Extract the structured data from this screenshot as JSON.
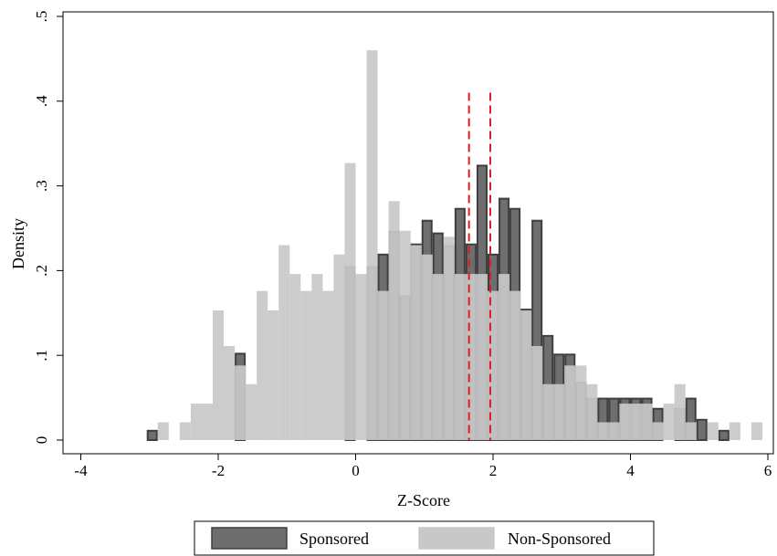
{
  "chart_data": {
    "type": "histogram",
    "xlabel": "Z-Score",
    "ylabel": "Density",
    "xlim": [
      -4.2,
      6.1
    ],
    "ylim": [
      0,
      0.5
    ],
    "x_ticks": [
      -4,
      -2,
      0,
      2,
      4,
      6
    ],
    "x_tick_labels": [
      "-4",
      "-2",
      "0",
      "2",
      "4",
      "6"
    ],
    "y_ticks": [
      0,
      0.1,
      0.2,
      0.3,
      0.4,
      0.5
    ],
    "y_tick_labels": [
      "0",
      ".1",
      ".2",
      ".3",
      ".4",
      ".5"
    ],
    "bin_width": 0.16,
    "legend_position": "bottom",
    "reference_lines": {
      "x": [
        1.65,
        1.96
      ],
      "style": "dashed",
      "color": "#e41a1c"
    },
    "series": [
      {
        "name": "Sponsored",
        "color": "#6e6e6e",
        "edge_color": "#3f3f3f",
        "bins": [
          {
            "x": -3.04,
            "y": 0.012
          },
          {
            "x": -1.76,
            "y": 0.103
          },
          {
            "x": -0.16,
            "y": 0.205
          },
          {
            "x": 0.16,
            "y": 0.205
          },
          {
            "x": 0.32,
            "y": 0.22
          },
          {
            "x": 0.48,
            "y": 0.247
          },
          {
            "x": 0.64,
            "y": 0.171
          },
          {
            "x": 0.8,
            "y": 0.232
          },
          {
            "x": 0.96,
            "y": 0.26
          },
          {
            "x": 1.12,
            "y": 0.245
          },
          {
            "x": 1.28,
            "y": 0.23
          },
          {
            "x": 1.44,
            "y": 0.274
          },
          {
            "x": 1.6,
            "y": 0.232
          },
          {
            "x": 1.76,
            "y": 0.325
          },
          {
            "x": 1.92,
            "y": 0.22
          },
          {
            "x": 2.08,
            "y": 0.286
          },
          {
            "x": 2.24,
            "y": 0.274
          },
          {
            "x": 2.4,
            "y": 0.155
          },
          {
            "x": 2.56,
            "y": 0.26
          },
          {
            "x": 2.72,
            "y": 0.124
          },
          {
            "x": 2.88,
            "y": 0.102
          },
          {
            "x": 3.04,
            "y": 0.102
          },
          {
            "x": 3.2,
            "y": 0.069
          },
          {
            "x": 3.36,
            "y": 0.05
          },
          {
            "x": 3.52,
            "y": 0.05
          },
          {
            "x": 3.68,
            "y": 0.05
          },
          {
            "x": 3.84,
            "y": 0.05
          },
          {
            "x": 4.0,
            "y": 0.05
          },
          {
            "x": 4.16,
            "y": 0.05
          },
          {
            "x": 4.32,
            "y": 0.038
          },
          {
            "x": 4.64,
            "y": 0.038
          },
          {
            "x": 4.8,
            "y": 0.05
          },
          {
            "x": 4.96,
            "y": 0.025
          },
          {
            "x": 5.28,
            "y": 0.012
          }
        ]
      },
      {
        "name": "Non-Sponsored",
        "color": "#c8c8c8",
        "edge_color": "#c8c8c8",
        "bins": [
          {
            "x": -2.88,
            "y": 0.021
          },
          {
            "x": -2.56,
            "y": 0.021
          },
          {
            "x": -2.4,
            "y": 0.043
          },
          {
            "x": -2.24,
            "y": 0.043
          },
          {
            "x": -2.08,
            "y": 0.153
          },
          {
            "x": -1.92,
            "y": 0.111
          },
          {
            "x": -1.76,
            "y": 0.088
          },
          {
            "x": -1.6,
            "y": 0.066
          },
          {
            "x": -1.44,
            "y": 0.176
          },
          {
            "x": -1.28,
            "y": 0.153
          },
          {
            "x": -1.12,
            "y": 0.23
          },
          {
            "x": -0.96,
            "y": 0.196
          },
          {
            "x": -0.8,
            "y": 0.176
          },
          {
            "x": -0.64,
            "y": 0.196
          },
          {
            "x": -0.48,
            "y": 0.176
          },
          {
            "x": -0.32,
            "y": 0.219
          },
          {
            "x": -0.16,
            "y": 0.327
          },
          {
            "x": 0.0,
            "y": 0.196
          },
          {
            "x": 0.16,
            "y": 0.46
          },
          {
            "x": 0.32,
            "y": 0.176
          },
          {
            "x": 0.48,
            "y": 0.282
          },
          {
            "x": 0.64,
            "y": 0.247
          },
          {
            "x": 0.8,
            "y": 0.23
          },
          {
            "x": 0.96,
            "y": 0.219
          },
          {
            "x": 1.12,
            "y": 0.196
          },
          {
            "x": 1.28,
            "y": 0.24
          },
          {
            "x": 1.44,
            "y": 0.196
          },
          {
            "x": 1.6,
            "y": 0.196
          },
          {
            "x": 1.76,
            "y": 0.196
          },
          {
            "x": 1.92,
            "y": 0.176
          },
          {
            "x": 2.08,
            "y": 0.196
          },
          {
            "x": 2.24,
            "y": 0.176
          },
          {
            "x": 2.4,
            "y": 0.153
          },
          {
            "x": 2.56,
            "y": 0.111
          },
          {
            "x": 2.72,
            "y": 0.066
          },
          {
            "x": 2.88,
            "y": 0.066
          },
          {
            "x": 3.04,
            "y": 0.088
          },
          {
            "x": 3.2,
            "y": 0.088
          },
          {
            "x": 3.36,
            "y": 0.066
          },
          {
            "x": 3.52,
            "y": 0.021
          },
          {
            "x": 3.68,
            "y": 0.021
          },
          {
            "x": 3.84,
            "y": 0.043
          },
          {
            "x": 4.0,
            "y": 0.043
          },
          {
            "x": 4.16,
            "y": 0.043
          },
          {
            "x": 4.32,
            "y": 0.021
          },
          {
            "x": 4.48,
            "y": 0.043
          },
          {
            "x": 4.64,
            "y": 0.066
          },
          {
            "x": 4.8,
            "y": 0.021
          },
          {
            "x": 5.12,
            "y": 0.021
          },
          {
            "x": 5.44,
            "y": 0.021
          },
          {
            "x": 5.76,
            "y": 0.021
          }
        ]
      }
    ]
  }
}
